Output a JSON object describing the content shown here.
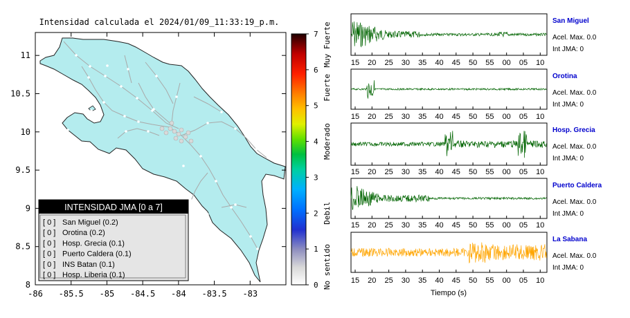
{
  "map": {
    "title": "Intensidad calculada el 2024/01/09_11:33:19_p.m.",
    "x_ticks": [
      "-86",
      "-85.5",
      "-85",
      "-84.5",
      "-84",
      "-83.5",
      "-83"
    ],
    "y_ticks": [
      "11",
      "10.5",
      "10",
      "9.5",
      "9",
      "8.5",
      "8"
    ],
    "xlim": [
      -86,
      -82.5
    ],
    "ylim": [
      8,
      11.3
    ],
    "land_color": "#b4ecee",
    "road_color": "#a9a9a9"
  },
  "legend": {
    "title": "INTENSIDAD JMA [0 a 7]",
    "items": [
      {
        "bracket": "[ 0 ]",
        "label": "San Miguel (0.2)"
      },
      {
        "bracket": "[ 0 ]",
        "label": "Orotina (0.2)"
      },
      {
        "bracket": "[ 0 ]",
        "label": "Hosp. Grecia (0.1)"
      },
      {
        "bracket": "[ 0 ]",
        "label": "Puerto Caldera (0.1)"
      },
      {
        "bracket": "[ 0 ]",
        "label": "INS Batan (0.1)"
      },
      {
        "bracket": "[ 0 ]",
        "label": "Hosp. Liberia (0.1)"
      }
    ]
  },
  "colorbar": {
    "ticks": [
      "0",
      "1",
      "2",
      "3",
      "4",
      "5",
      "6",
      "7"
    ],
    "labels": [
      "No sentido",
      "Debil",
      "Moderado",
      "Fuerte",
      "Muy Fuerte"
    ],
    "range": [
      0,
      7
    ]
  },
  "waveforms": {
    "xlabel": "Tiempo (s)",
    "x_ticks": [
      "15",
      "20",
      "25",
      "30",
      "35",
      "40",
      "45",
      "50",
      "55",
      "00",
      "05",
      "10"
    ],
    "accel_label": "Acel. Max. 0.0",
    "int_label": "Int JMA: 0",
    "stations": [
      {
        "name": "San Miguel",
        "color": "#006400"
      },
      {
        "name": "Orotina",
        "color": "#006400"
      },
      {
        "name": "Hosp. Grecia",
        "color": "#006400"
      },
      {
        "name": "Puerto Caldera",
        "color": "#006400"
      },
      {
        "name": "La Sabana",
        "color": "#ffa500"
      }
    ],
    "name_color": "#0000cd"
  }
}
